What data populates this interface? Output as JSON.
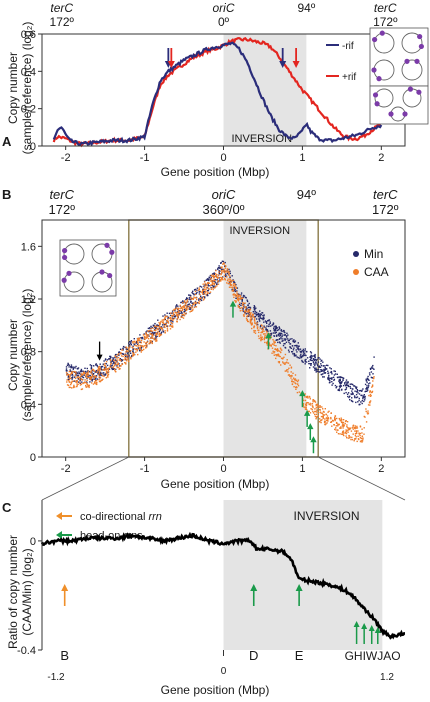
{
  "chart_data": [
    {
      "panel": "A",
      "type": "line",
      "top_labels": [
        {
          "text": "terC",
          "deg": "172º",
          "x": -2.05
        },
        {
          "text": "oriC",
          "deg": "0º",
          "x": 0
        },
        {
          "text": "94º",
          "deg": "",
          "x": 1.05
        },
        {
          "text": "terC",
          "deg": "172º",
          "x": 2.05
        }
      ],
      "xlabel": "Gene position (Mbp)",
      "ylabel": "Copy number",
      "ylabel2": "(sample/reference) (log₂)",
      "xlim": [
        -2.3,
        2.3
      ],
      "ylim": [
        0,
        0.6
      ],
      "xticks": [
        -2,
        -1,
        0,
        1,
        2
      ],
      "yticks": [
        0,
        0.2,
        0.4,
        0.6
      ],
      "shade": {
        "x0": 0,
        "x1": 1.05,
        "label": "INVERSION"
      },
      "legend_placement": "right",
      "series": [
        {
          "name": "-rif",
          "color": "#2b2d7a",
          "x": [
            -2.15,
            -2.1,
            -2.05,
            -2.0,
            -1.95,
            -1.9,
            -1.8,
            -1.6,
            -1.4,
            -1.2,
            -1.0,
            -0.9,
            -0.8,
            -0.7,
            -0.6,
            -0.5,
            -0.4,
            -0.3,
            -0.2,
            -0.1,
            0.0,
            0.1,
            0.2,
            0.3,
            0.4,
            0.5,
            0.6,
            0.7,
            0.8,
            0.9,
            1.0,
            1.05,
            1.1,
            1.2,
            1.3,
            1.4,
            1.5,
            1.6,
            1.7,
            1.8,
            1.9,
            2.0
          ],
          "y": [
            0.03,
            0.09,
            0.1,
            0.06,
            0.03,
            0.02,
            0.01,
            0.02,
            0.03,
            0.03,
            0.05,
            0.22,
            0.35,
            0.4,
            0.43,
            0.46,
            0.48,
            0.5,
            0.52,
            0.53,
            0.54,
            0.55,
            0.52,
            0.45,
            0.35,
            0.25,
            0.16,
            0.09,
            0.05,
            0.04,
            0.08,
            0.12,
            0.08,
            0.04,
            0.03,
            0.03,
            0.04,
            0.05,
            0.06,
            0.08,
            0.1,
            0.11
          ]
        },
        {
          "name": "+rif",
          "color": "#e32620",
          "x": [
            -2.15,
            -2.1,
            -2.0,
            -1.9,
            -1.8,
            -1.6,
            -1.4,
            -1.2,
            -1.0,
            -0.9,
            -0.8,
            -0.7,
            -0.6,
            -0.5,
            -0.4,
            -0.3,
            -0.2,
            -0.1,
            0.0,
            0.1,
            0.2,
            0.3,
            0.4,
            0.5,
            0.6,
            0.7,
            0.8,
            0.9,
            1.0,
            1.1,
            1.2,
            1.3,
            1.4,
            1.5,
            1.6,
            1.7,
            1.8,
            1.9,
            2.0
          ],
          "y": [
            0.03,
            0.05,
            0.04,
            0.02,
            0.01,
            0.02,
            0.03,
            0.03,
            0.05,
            0.2,
            0.33,
            0.38,
            0.41,
            0.44,
            0.47,
            0.49,
            0.51,
            0.52,
            0.54,
            0.56,
            0.57,
            0.57,
            0.56,
            0.55,
            0.53,
            0.48,
            0.42,
            0.36,
            0.3,
            0.25,
            0.2,
            0.15,
            0.1,
            0.06,
            0.04,
            0.04,
            0.06,
            0.09,
            0.12
          ]
        }
      ],
      "arrows": [
        {
          "x": -0.68,
          "colors": [
            "#2b2d7a",
            "#e32620"
          ]
        },
        {
          "x": 0.75,
          "colors": [
            "#2b2d7a"
          ]
        },
        {
          "x": 0.92,
          "colors": [
            "#e32620"
          ]
        }
      ]
    },
    {
      "panel": "B",
      "type": "scatter",
      "top_labels": [
        {
          "text": "terC",
          "deg": "172º",
          "x": -2.05
        },
        {
          "text": "oriC",
          "deg": "360º/0º",
          "x": 0
        },
        {
          "text": "94º",
          "deg": "",
          "x": 1.05
        },
        {
          "text": "terC",
          "deg": "172º",
          "x": 2.05
        }
      ],
      "xlabel": "Gene position (Mbp)",
      "ylabel": "Copy number",
      "ylabel2": "(sample/reference) (log₂)",
      "xlim": [
        -2.3,
        2.3
      ],
      "ylim": [
        0,
        1.8
      ],
      "xticks": [
        -2,
        -1,
        0,
        1,
        2
      ],
      "yticks": [
        0,
        0.4,
        0.8,
        1.2,
        1.6
      ],
      "shade": {
        "x0": 0,
        "x1": 1.05,
        "label": "INVERSION"
      },
      "box": {
        "x0": -1.2,
        "x1": 1.2
      },
      "legend_placement": "top-right",
      "series": [
        {
          "name": "Min",
          "color": "#252869",
          "x": [
            -2.0,
            -1.8,
            -1.6,
            -1.4,
            -1.2,
            -1.0,
            -0.8,
            -0.6,
            -0.4,
            -0.2,
            0.0,
            0.2,
            0.4,
            0.6,
            0.8,
            1.0,
            1.2,
            1.4,
            1.6,
            1.75,
            1.9
          ],
          "y": [
            0.66,
            0.62,
            0.66,
            0.72,
            0.82,
            0.9,
            1.0,
            1.1,
            1.2,
            1.3,
            1.45,
            1.2,
            1.08,
            0.98,
            0.88,
            0.78,
            0.7,
            0.6,
            0.5,
            0.45,
            0.7
          ]
        },
        {
          "name": "CAA",
          "color": "#ef7d2a",
          "x": [
            -2.0,
            -1.8,
            -1.6,
            -1.4,
            -1.2,
            -1.0,
            -0.8,
            -0.6,
            -0.4,
            -0.2,
            0.0,
            0.2,
            0.4,
            0.6,
            0.8,
            1.0,
            1.2,
            1.4,
            1.6,
            1.75,
            1.9
          ],
          "y": [
            0.6,
            0.58,
            0.62,
            0.7,
            0.8,
            0.88,
            0.98,
            1.08,
            1.18,
            1.3,
            1.42,
            1.18,
            1.0,
            0.86,
            0.7,
            0.45,
            0.34,
            0.26,
            0.2,
            0.18,
            0.6
          ]
        }
      ],
      "arrows": [
        {
          "x": -1.57,
          "y": 0.74,
          "color": "#000000"
        },
        {
          "x": 0.12,
          "y": 1.18,
          "color": "#1a9a4a"
        },
        {
          "x": 0.57,
          "y": 0.94,
          "color": "#1a9a4a"
        },
        {
          "x": 1.0,
          "y": 0.5,
          "color": "#1a9a4a"
        },
        {
          "x": 1.06,
          "y": 0.35,
          "color": "#1a9a4a"
        },
        {
          "x": 1.1,
          "y": 0.25,
          "color": "#1a9a4a"
        },
        {
          "x": 1.14,
          "y": 0.15,
          "color": "#1a9a4a"
        }
      ]
    },
    {
      "panel": "C",
      "type": "line",
      "xlabel": "Gene position (Mbp)",
      "ylabel": "Ratio of copy number",
      "ylabel2": "(CAA/Min) (log₂)",
      "xlim": [
        -1.2,
        1.2
      ],
      "ylim": [
        -0.4,
        0.15
      ],
      "yticks": [
        0,
        -0.4
      ],
      "ytick_labels": [
        "0",
        "-0.4"
      ],
      "xtick_labels": [
        "-1.2",
        "1.2"
      ],
      "shade": {
        "x0": 0,
        "x1": 1.05,
        "label": "INVERSION"
      },
      "legend": [
        {
          "label": "co-directional ",
          "italic": "rrn",
          "color": "#ef8f2a"
        },
        {
          "label": "head-on ",
          "italic": "rrns",
          "color": "#1a9a4a"
        }
      ],
      "series": [
        {
          "name": "",
          "color": "#000000",
          "x": [
            -1.2,
            -1.1,
            -1.0,
            -0.9,
            -0.8,
            -0.7,
            -0.6,
            -0.5,
            -0.4,
            -0.3,
            -0.2,
            -0.1,
            0.0,
            0.1,
            0.18,
            0.22,
            0.3,
            0.4,
            0.45,
            0.5,
            0.6,
            0.7,
            0.8,
            0.85,
            0.9,
            0.95,
            1.0,
            1.05,
            1.1,
            1.2
          ],
          "y": [
            -0.01,
            0.0,
            0.0,
            0.01,
            0.01,
            0.01,
            0.02,
            0.01,
            0.0,
            0.01,
            0.02,
            0.0,
            -0.01,
            0.0,
            0.0,
            -0.03,
            -0.03,
            -0.04,
            -0.07,
            -0.14,
            -0.15,
            -0.16,
            -0.18,
            -0.2,
            -0.23,
            -0.26,
            -0.29,
            -0.33,
            -0.35,
            -0.34
          ]
        }
      ],
      "genes": [
        {
          "label": "B",
          "x": -1.05,
          "color": "#ef8f2a"
        },
        {
          "label": "D",
          "x": 0.2,
          "color": "#1a9a4a"
        },
        {
          "label": "E",
          "x": 0.5,
          "color": "#1a9a4a"
        },
        {
          "label": "GHIWJAO",
          "x": 0.88,
          "color": "#1a9a4a"
        }
      ]
    }
  ]
}
